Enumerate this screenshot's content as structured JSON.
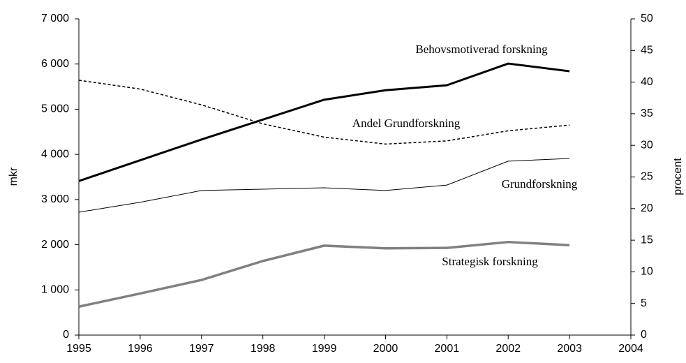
{
  "chart_data": {
    "type": "line",
    "y_label": "mkr",
    "y2_label": "procent",
    "x": [
      1995,
      1996,
      1997,
      1998,
      1999,
      2000,
      2001,
      2002,
      2003
    ],
    "xlim": [
      1995,
      2004
    ],
    "xticks": [
      1995,
      1996,
      1997,
      1998,
      1999,
      2000,
      2001,
      2002,
      2003,
      2004
    ],
    "ylim": [
      0,
      7000
    ],
    "yticks": [
      0,
      {
        "value": 1000,
        "label": "1 000"
      },
      {
        "value": 2000,
        "label": "2 000"
      },
      {
        "value": 3000,
        "label": "3 000"
      },
      {
        "value": 4000,
        "label": "4 000"
      },
      {
        "value": 5000,
        "label": "5 000"
      },
      {
        "value": 6000,
        "label": "6 000"
      },
      {
        "value": 7000,
        "label": "7 000"
      }
    ],
    "y2lim": [
      0,
      50
    ],
    "y2ticks": [
      0,
      5,
      10,
      15,
      20,
      25,
      30,
      35,
      40,
      45,
      50
    ],
    "grid": false,
    "series": [
      {
        "name": "Behovsmotiverad forskning",
        "color": "#000000",
        "values": [
          3410,
          3870,
          4330,
          4770,
          5210,
          5420,
          5530,
          6010,
          5840
        ]
      },
      {
        "name": "Andel Grundforskning",
        "color": "#000000",
        "axis": "y2",
        "dashed": true,
        "values": [
          40.3,
          38.9,
          36.4,
          33.4,
          31.3,
          30.2,
          30.7,
          32.3,
          33.2
        ]
      },
      {
        "name": "Grundforskning",
        "color": "#000000",
        "values": [
          2720,
          2940,
          3200,
          3230,
          3260,
          3200,
          3320,
          3850,
          3910
        ]
      },
      {
        "name": "Strategisk forskning",
        "color": "#808080",
        "values": [
          630,
          920,
          1220,
          1640,
          1980,
          1920,
          1930,
          2060,
          1990
        ]
      }
    ]
  }
}
